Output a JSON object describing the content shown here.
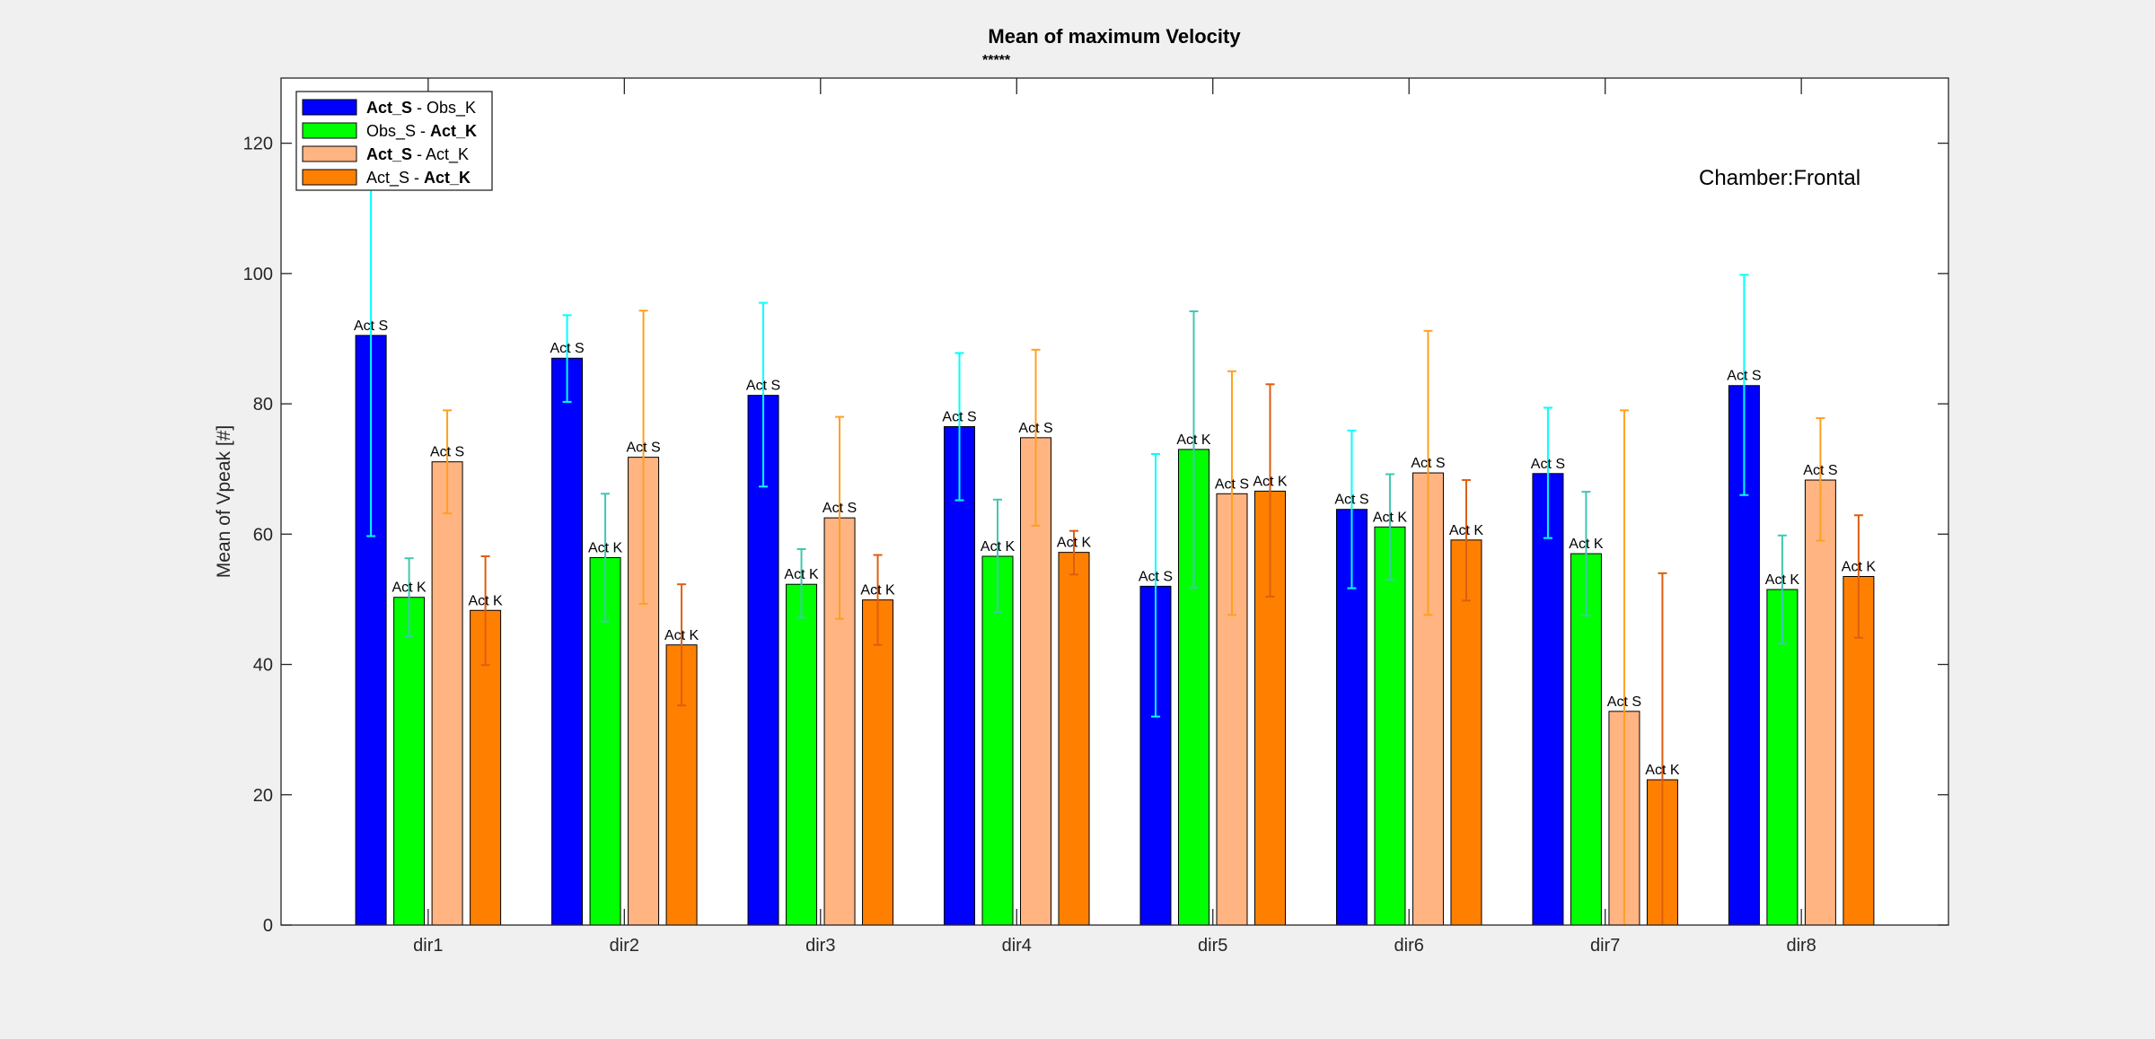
{
  "chart_data": {
    "type": "bar",
    "title": "Mean of maximum Velocity",
    "subtitle": "*****",
    "xlabel": "",
    "ylabel": "Mean of Vpeak [#]",
    "ylim": [
      0,
      130
    ],
    "yticks": [
      0,
      20,
      40,
      60,
      80,
      100,
      120
    ],
    "categories": [
      "dir1",
      "dir2",
      "dir3",
      "dir4",
      "dir5",
      "dir6",
      "dir7",
      "dir8"
    ],
    "annotation": "Chamber:Frontal",
    "legend_position": "top-left",
    "grid": false,
    "series": [
      {
        "legend": [
          {
            "text": "Act_S",
            "bold": true
          },
          {
            "text": " - Obs_K",
            "bold": false
          }
        ],
        "color": "#0000ff",
        "errorbar_color": "#00ffff",
        "values": [
          90.5,
          87.0,
          81.3,
          76.5,
          52.0,
          63.8,
          69.3,
          82.8
        ],
        "err_low": [
          59.7,
          80.3,
          67.3,
          65.2,
          32.0,
          51.7,
          59.4,
          66.0
        ],
        "err_high": [
          122.0,
          93.6,
          95.5,
          87.8,
          72.3,
          75.9,
          79.4,
          99.8
        ],
        "labels": [
          "Act S",
          "Act S",
          "Act S",
          "Act S",
          "Act S",
          "Act S",
          "Act S",
          "Act S"
        ]
      },
      {
        "legend": [
          {
            "text": "Obs_S - ",
            "bold": false
          },
          {
            "text": "Act_K",
            "bold": true
          }
        ],
        "color": "#00ff00",
        "errorbar_color": "#40c8b0",
        "values": [
          50.3,
          56.4,
          52.3,
          56.6,
          73.0,
          61.1,
          57.0,
          51.5
        ],
        "err_low": [
          44.3,
          46.6,
          47.2,
          48.0,
          51.8,
          53.0,
          47.5,
          43.2
        ],
        "err_high": [
          56.3,
          66.2,
          57.7,
          65.3,
          94.2,
          69.2,
          66.5,
          59.8
        ],
        "labels": [
          "Act K",
          "Act K",
          "Act K",
          "Act K",
          "Act K",
          "Act K",
          "Act K",
          "Act K"
        ]
      },
      {
        "legend": [
          {
            "text": "Act_S",
            "bold": true
          },
          {
            "text": " - Act_K",
            "bold": false
          }
        ],
        "color": "#ffb482",
        "errorbar_color": "#ffa020",
        "values": [
          71.1,
          71.8,
          62.5,
          74.8,
          66.2,
          69.4,
          32.8,
          68.3
        ],
        "err_low": [
          63.2,
          49.3,
          47.0,
          61.3,
          47.6,
          47.6,
          0,
          59.0
        ],
        "err_high": [
          79.0,
          94.3,
          78.0,
          88.3,
          85.0,
          91.2,
          79.0,
          77.8
        ],
        "labels": [
          "Act S",
          "Act S",
          "Act S",
          "Act S",
          "Act S",
          "Act S",
          "Act S",
          "Act S"
        ]
      },
      {
        "legend": [
          {
            "text": "Act_S - ",
            "bold": false
          },
          {
            "text": "Act_K",
            "bold": true
          }
        ],
        "color": "#ff8000",
        "errorbar_color": "#dd5e10",
        "values": [
          48.3,
          43.0,
          49.9,
          57.2,
          66.6,
          59.1,
          22.3,
          53.5
        ],
        "err_low": [
          39.9,
          33.7,
          43.0,
          53.8,
          50.4,
          49.8,
          0,
          44.1
        ],
        "err_high": [
          56.6,
          52.3,
          56.8,
          60.5,
          83.0,
          68.3,
          54.0,
          62.9
        ],
        "labels": [
          "Act K",
          "Act K",
          "Act K",
          "Act K",
          "Act K",
          "Act K",
          "Act K",
          "Act K"
        ]
      }
    ]
  }
}
